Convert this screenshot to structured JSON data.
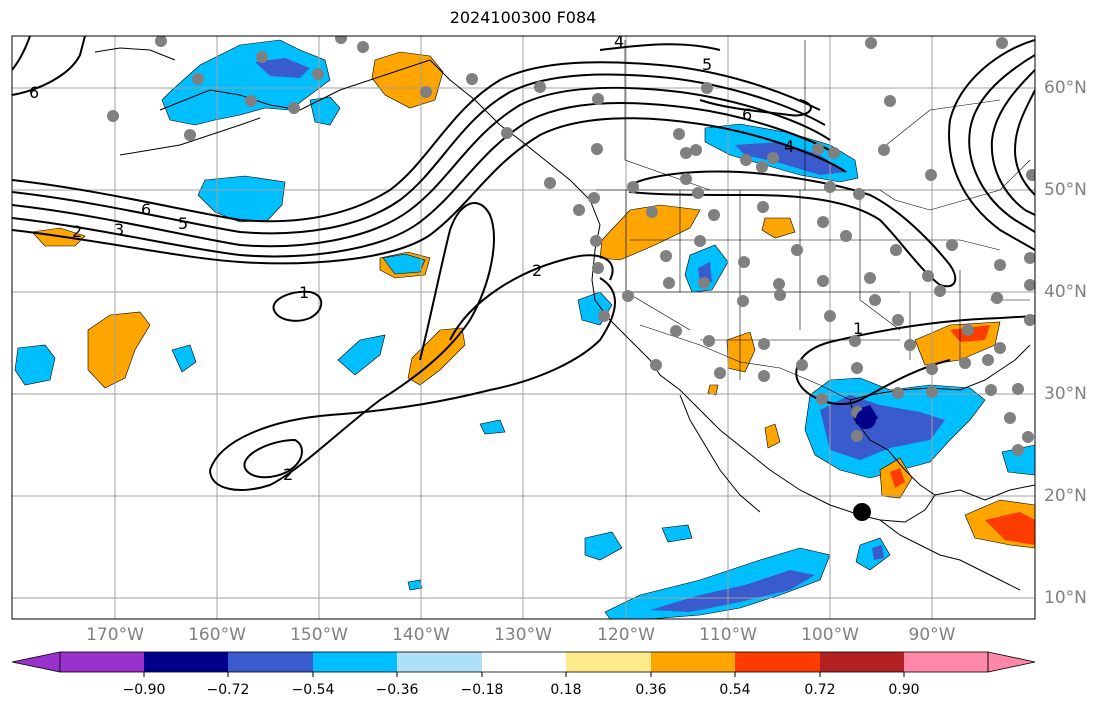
{
  "title": "2024100300 F084",
  "map": {
    "longitude_labels": [
      "170°W",
      "160°W",
      "150°W",
      "140°W",
      "130°W",
      "120°W",
      "110°W",
      "100°W",
      "90°W"
    ],
    "latitude_labels": [
      "60°N",
      "50°N",
      "40°N",
      "30°N",
      "20°N",
      "10°N"
    ],
    "contour_labels": [
      "6",
      "4",
      "5",
      "6",
      "4",
      "6",
      "3",
      "5",
      "2",
      "2",
      "1",
      "2",
      "1"
    ]
  },
  "colorbar": {
    "tick_labels": [
      "−0.90",
      "−0.72",
      "−0.54",
      "−0.36",
      "−0.18",
      "0.18",
      "0.36",
      "0.54",
      "0.72",
      "0.90"
    ],
    "colors": [
      "#9932cc",
      "#00008b",
      "#3a5bcd",
      "#00bfff",
      "#aee0fa",
      "#ffffff",
      "#ffeb8a",
      "#ffa500",
      "#ff3c00",
      "#b22222",
      "#ff88aa"
    ]
  },
  "colors": {
    "grid": "#a0a0a0",
    "station_dot": "#808080",
    "contour": "#000000"
  }
}
